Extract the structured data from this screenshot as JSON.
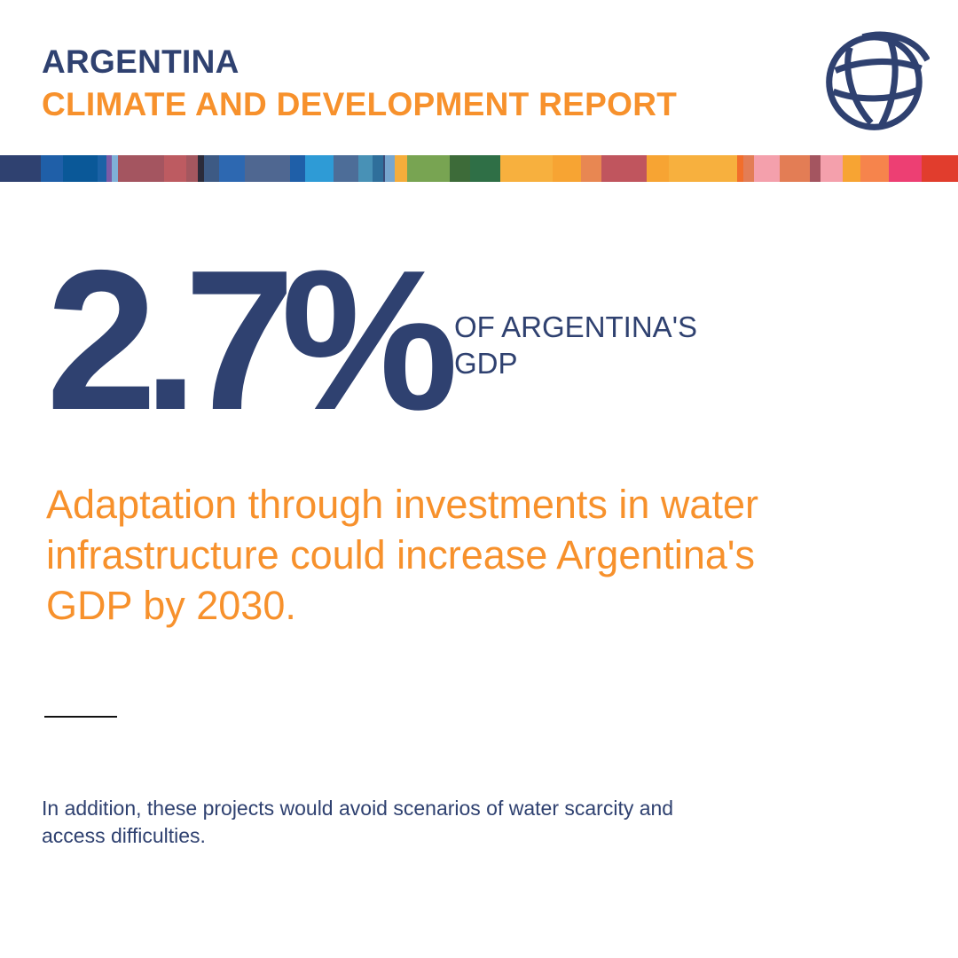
{
  "header": {
    "country": "ARGENTINA",
    "report": "CLIMATE AND DEVELOPMENT REPORT"
  },
  "logo": {
    "icon": "globe-icon",
    "color": "#2f4170"
  },
  "stat": {
    "value": "2.7%",
    "label": "OF ARGENTINA'S GDP"
  },
  "headline": "Adaptation through investments in water infrastructure could increase Argentina's GDP by 2030.",
  "note": "In addition, these projects would avoid scenarios of water scarcity and access difficulties.",
  "colors": {
    "navy": "#2f4170",
    "orange": "#f7912c",
    "background": "#ffffff",
    "stripe": [
      "#2f4170",
      "#1f5fa8",
      "#0a5898",
      "#1c62a6",
      "#7d5ba6",
      "#7fb0d8",
      "#a45560",
      "#bd5b61",
      "#a4575f",
      "#2b2b3a",
      "#3d5a84",
      "#2d68b1",
      "#4f6791",
      "#1f5fa8",
      "#2e9bd6",
      "#4d6d98",
      "#4891b6",
      "#2f6f9b",
      "#3b4c7a",
      "#77a6cf",
      "#f5ad3b",
      "#78a452",
      "#3d6b39",
      "#2f6f46",
      "#f7b03e",
      "#f7a433",
      "#e88752",
      "#c0555e",
      "#f7a433",
      "#f7b03e",
      "#f26e2b",
      "#e37d55",
      "#f4a0ac",
      "#e37d55",
      "#a45560",
      "#f4a0ac",
      "#f7a433",
      "#f6844c",
      "#ed3f73",
      "#e13d2d"
    ]
  }
}
